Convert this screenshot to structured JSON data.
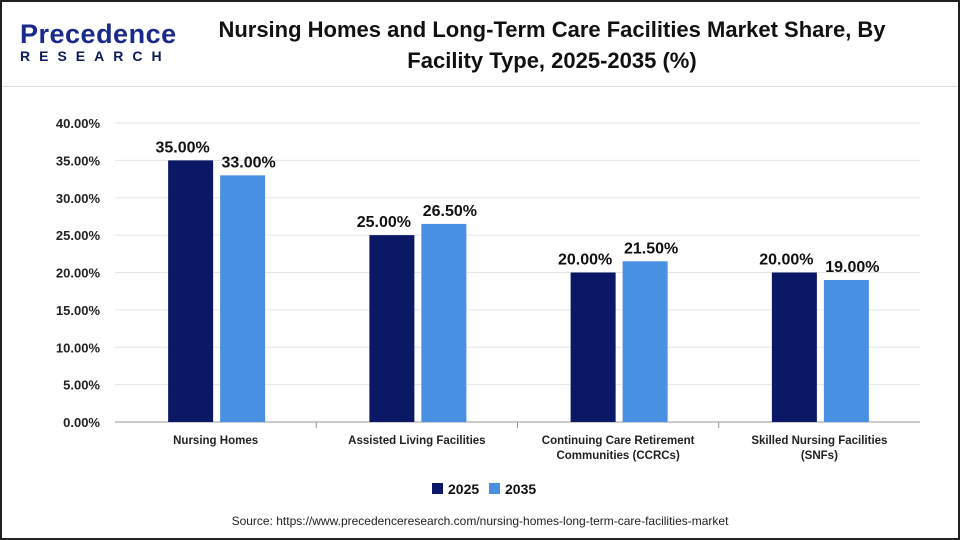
{
  "logo": {
    "line1": "Precedence",
    "line2": "RESEARCH"
  },
  "title": "Nursing Homes and Long-Term Care Facilities Market Share, By Facility Type, 2025-2035 (%)",
  "source": "Source: https://www.precedenceresearch.com/nursing-homes-long-term-care-facilities-market",
  "chart_data": {
    "type": "bar",
    "categories": [
      [
        "Nursing Homes"
      ],
      [
        "Assisted Living Facilities"
      ],
      [
        "Continuing Care Retirement",
        "Communities (CCRCs)"
      ],
      [
        "Skilled Nursing Facilities",
        "(SNFs)"
      ]
    ],
    "series": [
      {
        "name": "2025",
        "values": [
          35.0,
          25.0,
          20.0,
          20.0
        ],
        "color": "#0b1866"
      },
      {
        "name": "2035",
        "values": [
          33.0,
          26.5,
          21.5,
          19.0
        ],
        "color": "#4a90e2"
      }
    ],
    "ylim": [
      0,
      40
    ],
    "yticks": [
      0,
      5,
      10,
      15,
      20,
      25,
      30,
      35,
      40
    ],
    "grid": true,
    "legend": "bottom",
    "title": "Nursing Homes and Long-Term Care Facilities Market Share, By Facility Type, 2025-2035 (%)"
  }
}
